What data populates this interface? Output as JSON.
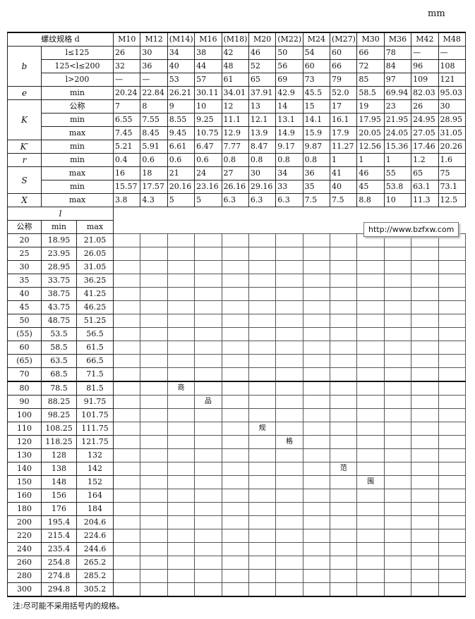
{
  "unit": "mm",
  "header_label": "螺纹规格 d",
  "sizes": [
    "M10",
    "M12",
    "(M14)",
    "M16",
    "(M18)",
    "M20",
    "(M22)",
    "M24",
    "(M27)",
    "M30",
    "M36",
    "M42",
    "M48"
  ],
  "upper_rows": [
    {
      "group": "b",
      "sub": "l≤125",
      "values": [
        "26",
        "30",
        "34",
        "38",
        "42",
        "46",
        "50",
        "54",
        "60",
        "66",
        "78",
        "—",
        "—"
      ]
    },
    {
      "group": "",
      "sub": "125<l≤200",
      "values": [
        "32",
        "36",
        "40",
        "44",
        "48",
        "52",
        "56",
        "60",
        "66",
        "72",
        "84",
        "96",
        "108"
      ]
    },
    {
      "group": "",
      "sub": "l>200",
      "values": [
        "—",
        "—",
        "53",
        "57",
        "61",
        "65",
        "69",
        "73",
        "79",
        "85",
        "97",
        "109",
        "121"
      ]
    },
    {
      "group": "e",
      "sub": "min",
      "values": [
        "20.24",
        "22.84",
        "26.21",
        "30.11",
        "34.01",
        "37.91",
        "42.9",
        "45.5",
        "52.0",
        "58.5",
        "69.94",
        "82.03",
        "95.03"
      ]
    },
    {
      "group": "K",
      "sub": "公称",
      "values": [
        "7",
        "8",
        "9",
        "10",
        "12",
        "13",
        "14",
        "15",
        "17",
        "19",
        "23",
        "26",
        "30"
      ]
    },
    {
      "group": "",
      "sub": "min",
      "values": [
        "6.55",
        "7.55",
        "8.55",
        "9.25",
        "11.1",
        "12.1",
        "13.1",
        "14.1",
        "16.1",
        "17.95",
        "21.95",
        "24.95",
        "28.95"
      ]
    },
    {
      "group": "",
      "sub": "max",
      "values": [
        "7.45",
        "8.45",
        "9.45",
        "10.75",
        "12.9",
        "13.9",
        "14.9",
        "15.9",
        "17.9",
        "20.05",
        "24.05",
        "27.05",
        "31.05"
      ]
    },
    {
      "group": "K′",
      "sub": "min",
      "values": [
        "5.21",
        "5.91",
        "6.61",
        "6.47",
        "7.77",
        "8.47",
        "9.17",
        "9.87",
        "11.27",
        "12.56",
        "15.36",
        "17.46",
        "20.26"
      ]
    },
    {
      "group": "r",
      "sub": "min",
      "values": [
        "0.4",
        "0.6",
        "0.6",
        "0.6",
        "0.8",
        "0.8",
        "0.8",
        "0.8",
        "1",
        "1",
        "1",
        "1.2",
        "1.6"
      ]
    },
    {
      "group": "S",
      "sub": "max",
      "values": [
        "16",
        "18",
        "21",
        "24",
        "27",
        "30",
        "34",
        "36",
        "41",
        "46",
        "55",
        "65",
        "75"
      ]
    },
    {
      "group": "",
      "sub": "min",
      "values": [
        "15.57",
        "17.57",
        "20.16",
        "23.16",
        "26.16",
        "29.16",
        "33",
        "35",
        "40",
        "45",
        "53.8",
        "63.1",
        "73.1"
      ]
    },
    {
      "group": "X",
      "sub": "max",
      "values": [
        "3.8",
        "4.3",
        "5",
        "5",
        "6.3",
        "6.3",
        "6.3",
        "7.5",
        "7.5",
        "8.8",
        "10",
        "11.3",
        "12.5"
      ]
    }
  ],
  "l_label": "l",
  "l_headers": [
    "公称",
    "min",
    "max"
  ],
  "l_rows": [
    [
      "20",
      "18.95",
      "21.05"
    ],
    [
      "25",
      "23.95",
      "26.05"
    ],
    [
      "30",
      "28.95",
      "31.05"
    ],
    [
      "35",
      "33.75",
      "36.25"
    ],
    [
      "40",
      "38.75",
      "41.25"
    ],
    [
      "45",
      "43.75",
      "46.25"
    ],
    [
      "50",
      "48.75",
      "51.25"
    ],
    [
      "(55)",
      "53.5",
      "56.5"
    ],
    [
      "60",
      "58.5",
      "61.5"
    ],
    [
      "(65)",
      "63.5",
      "66.5"
    ],
    [
      "70",
      "68.5",
      "71.5"
    ],
    [
      "80",
      "78.5",
      "81.5"
    ],
    [
      "90",
      "88.25",
      "91.75"
    ],
    [
      "100",
      "98.25",
      "101.75"
    ],
    [
      "110",
      "108.25",
      "111.75"
    ],
    [
      "120",
      "118.25",
      "121.75"
    ],
    [
      "130",
      "128",
      "132"
    ],
    [
      "140",
      "138",
      "142"
    ],
    [
      "150",
      "148",
      "152"
    ],
    [
      "160",
      "156",
      "164"
    ],
    [
      "180",
      "176",
      "184"
    ],
    [
      "200",
      "195.4",
      "204.6"
    ],
    [
      "220",
      "215.4",
      "224.6"
    ],
    [
      "240",
      "235.4",
      "244.6"
    ],
    [
      "260",
      "254.8",
      "265.2"
    ],
    [
      "280",
      "274.8",
      "285.2"
    ],
    [
      "300",
      "294.8",
      "305.2"
    ]
  ],
  "range_marks": [
    {
      "row": 11,
      "col": 2,
      "text": "商"
    },
    {
      "row": 12,
      "col": 3,
      "text": "品"
    },
    {
      "row": 14,
      "col": 5,
      "text": "规"
    },
    {
      "row": 15,
      "col": 6,
      "text": "格"
    },
    {
      "row": 17,
      "col": 8,
      "text": "范"
    },
    {
      "row": 18,
      "col": 9,
      "text": "围"
    }
  ],
  "watermark": "http://www.bzfxw.com",
  "note": "注:尽可能不采用括号内的规格。"
}
